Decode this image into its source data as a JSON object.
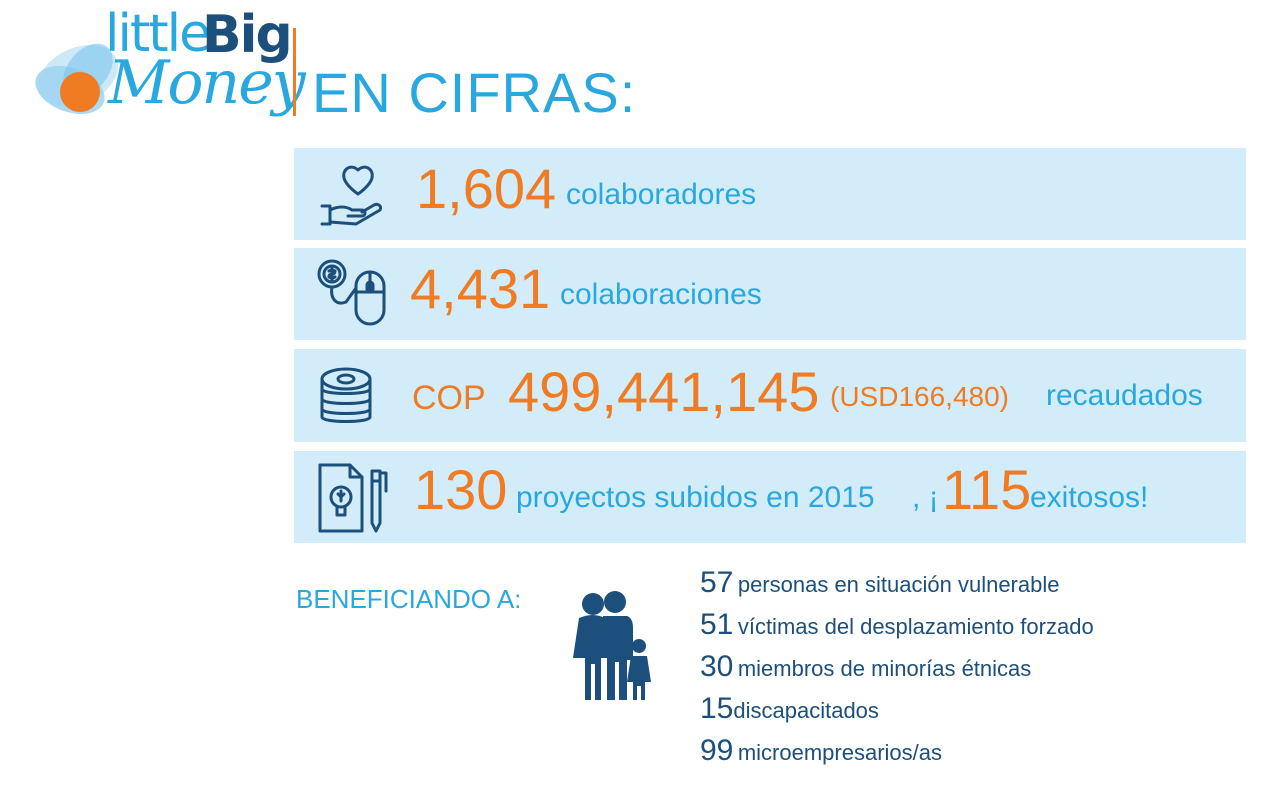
{
  "logo": {
    "word_little": "little",
    "word_big": "Big",
    "word_money": "Money"
  },
  "title": "EN CIFRAS:",
  "stats": [
    {
      "value": "1,604",
      "label": "colaboradores",
      "icon": "hand-heart-icon"
    },
    {
      "value": "4,431",
      "label": "colaboraciones",
      "icon": "coin-mouse-icon"
    },
    {
      "currency": "COP",
      "value": "499,441,145",
      "usd": "(USD166,480)",
      "label": "recaudados",
      "icon": "coins-stack-icon"
    },
    {
      "value": "130",
      "label": "proyectos subidos en 2015",
      "punct": ", ¡",
      "highlight": "115",
      "suffix": "exitosos!",
      "icon": "idea-document-icon"
    }
  ],
  "beneficiaries": {
    "heading": "BENEFICIANDO A:",
    "icon": "family-icon",
    "items": [
      {
        "count": "57",
        "text": "personas en situación vulnerable"
      },
      {
        "count": "51",
        "text": "víctimas del desplazamiento forzado"
      },
      {
        "count": "30",
        "text": "miembros de minorías étnicas"
      },
      {
        "count": "15",
        "text": "discapacitados"
      },
      {
        "count": "99",
        "text": "microempresarios/as"
      }
    ]
  },
  "colors": {
    "accent_orange": "#f07b22",
    "accent_blue": "#29a8e0",
    "dark_blue": "#1d4f7c",
    "panel_bg": "#d3ecf9"
  }
}
